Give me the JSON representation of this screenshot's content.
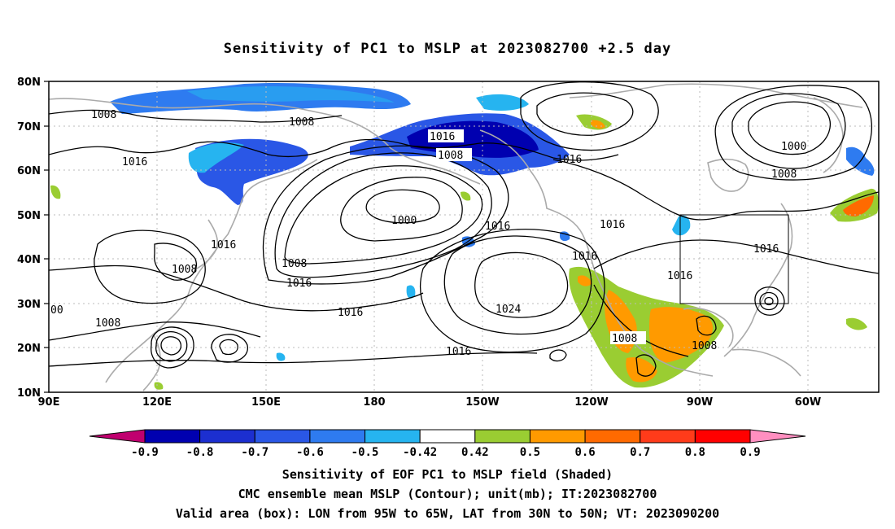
{
  "title": "Sensitivity of PC1 to MSLP at 2023082700 +2.5 day",
  "map": {
    "lat_labels": [
      "80N",
      "70N",
      "60N",
      "50N",
      "40N",
      "30N",
      "20N",
      "10N"
    ],
    "lon_labels": [
      "90E",
      "120E",
      "150E",
      "180",
      "150W",
      "120W",
      "90W",
      "60W"
    ],
    "contour_labels": [
      {
        "text": "1008",
        "near": "70N 100E"
      },
      {
        "text": "1008",
        "near": "70N 165E"
      },
      {
        "text": "1016",
        "near": "61N 110E"
      },
      {
        "text": "1016",
        "near": "67N 155W"
      },
      {
        "text": "1008",
        "near": "63N 155W"
      },
      {
        "text": "1016",
        "near": "61N 135W"
      },
      {
        "text": "1000",
        "near": "52N 175E"
      },
      {
        "text": "1016",
        "near": "46N 155W"
      },
      {
        "text": "1016",
        "near": "47N 128E"
      },
      {
        "text": "1016",
        "near": "48N 120W"
      },
      {
        "text": "1016",
        "near": "42N 120W"
      },
      {
        "text": "1008",
        "near": "41N 155E"
      },
      {
        "text": "1016",
        "near": "38N 157E"
      },
      {
        "text": "1008",
        "near": "38N 120E"
      },
      {
        "text": "1016",
        "near": "36N 85W"
      },
      {
        "text": "1016",
        "near": "41N 67W"
      },
      {
        "text": "1000",
        "near": "63N 70W"
      },
      {
        "text": "1008",
        "near": "59N 80W"
      },
      {
        "text": "1016",
        "near": "32N 170E"
      },
      {
        "text": "1024",
        "near": "32N 149W"
      },
      {
        "text": "1016",
        "near": "19N 158W"
      },
      {
        "text": "1008",
        "near": "23N 112W"
      },
      {
        "text": "1008",
        "near": "20N 90W"
      },
      {
        "text": "1008",
        "near": "26N 100E"
      },
      {
        "text": "00",
        "near": "29N 90E"
      }
    ],
    "valid_box": {
      "lon": "95W to 65W",
      "lat": "30N to 50N"
    }
  },
  "colorbar": {
    "labels": [
      "-0.9",
      "-0.8",
      "-0.7",
      "-0.6",
      "-0.5",
      "-0.42",
      "0.42",
      "0.5",
      "0.6",
      "0.7",
      "0.8",
      "0.9"
    ],
    "colors": [
      "#c0006f",
      "#0000b0",
      "#1c2fd0",
      "#2a57e6",
      "#2e7bf0",
      "#26b4f0",
      "#ffffff",
      "#9acd32",
      "#ff9a00",
      "#ff6a00",
      "#ff3b1a",
      "#ff0000",
      "#ff8fc0"
    ]
  },
  "captions": {
    "line1": "Sensitivity of EOF PC1 to MSLP field (Shaded)",
    "line2": "CMC ensemble mean MSLP (Contour); unit(mb); IT:2023082700",
    "line3": "Valid area (box): LON from 95W to 65W, LAT from 30N to 50N; VT: 2023090200"
  }
}
